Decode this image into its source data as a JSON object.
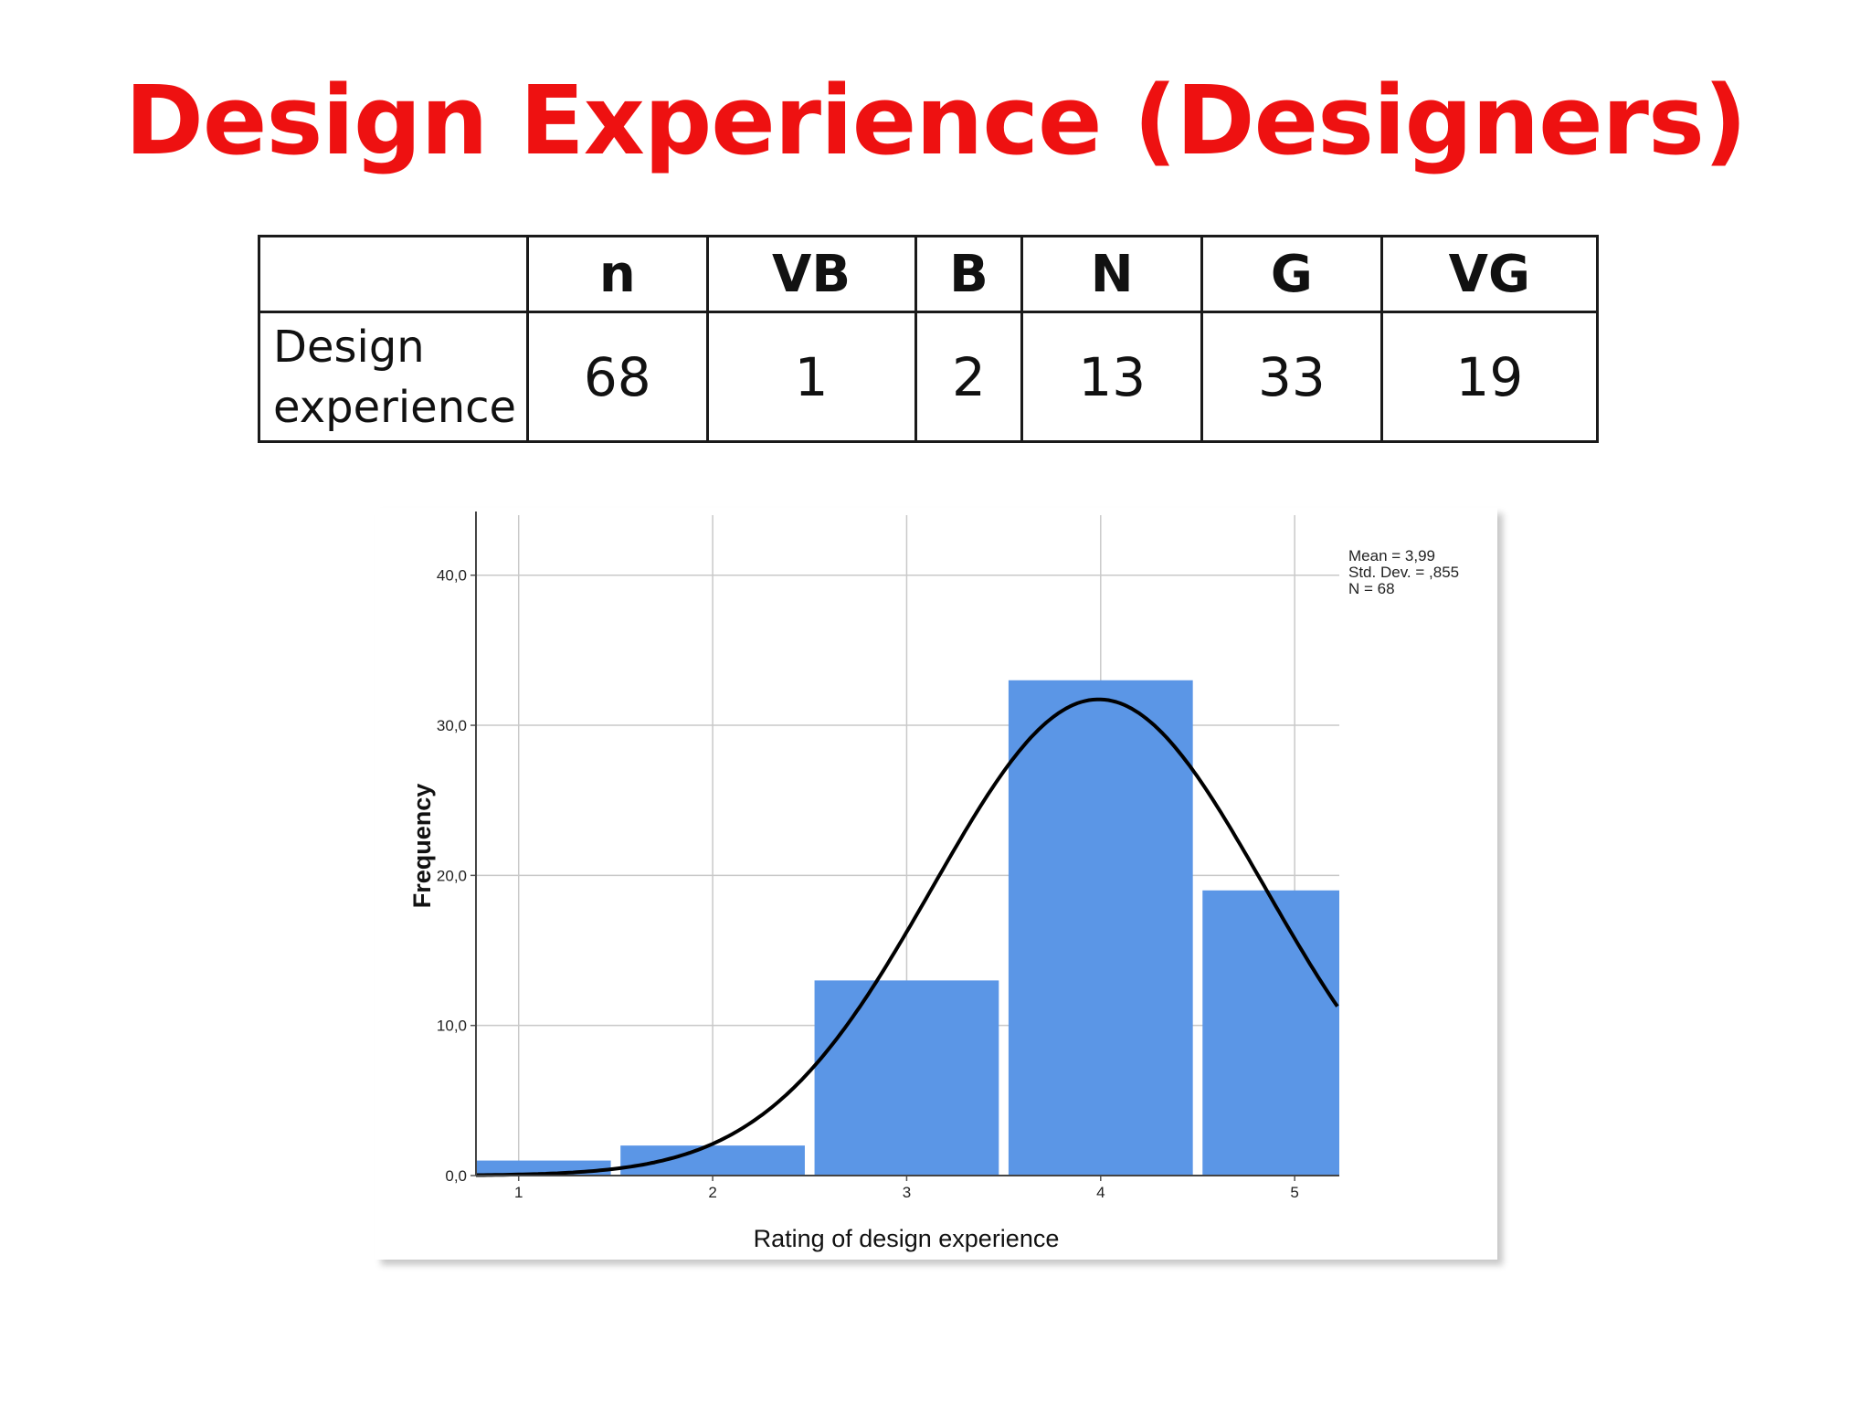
{
  "slide": {
    "title": "Design Experience (Designers)"
  },
  "table": {
    "headers": [
      "",
      "n",
      "VB",
      "B",
      "N",
      "G",
      "VG"
    ],
    "row_label_line1": "Design",
    "row_label_line2": "experience",
    "values": [
      "68",
      "1",
      "2",
      "13",
      "33",
      "19"
    ]
  },
  "chart_data": {
    "type": "bar",
    "categories": [
      "1",
      "2",
      "3",
      "4",
      "5"
    ],
    "values": [
      1,
      2,
      13,
      33,
      19
    ],
    "xlabel": "Rating of design experience",
    "ylabel": "Frequency",
    "ylim": [
      0,
      44
    ],
    "y_ticks": [
      0,
      10,
      20,
      30,
      40
    ],
    "y_tick_labels": [
      "0,0",
      "10,0",
      "20,0",
      "30,0",
      "40,0"
    ],
    "grid": true,
    "bar_color": "#5b96e6",
    "normal_curve": {
      "mean": 3.99,
      "std_dev": 0.855,
      "n": 68,
      "bin_width": 1
    },
    "stats": {
      "mean_label": "Mean = 3,99",
      "std_label": "Std. Dev. = ,855",
      "n_label": "N = 68"
    },
    "stats_placement": "top-right"
  }
}
